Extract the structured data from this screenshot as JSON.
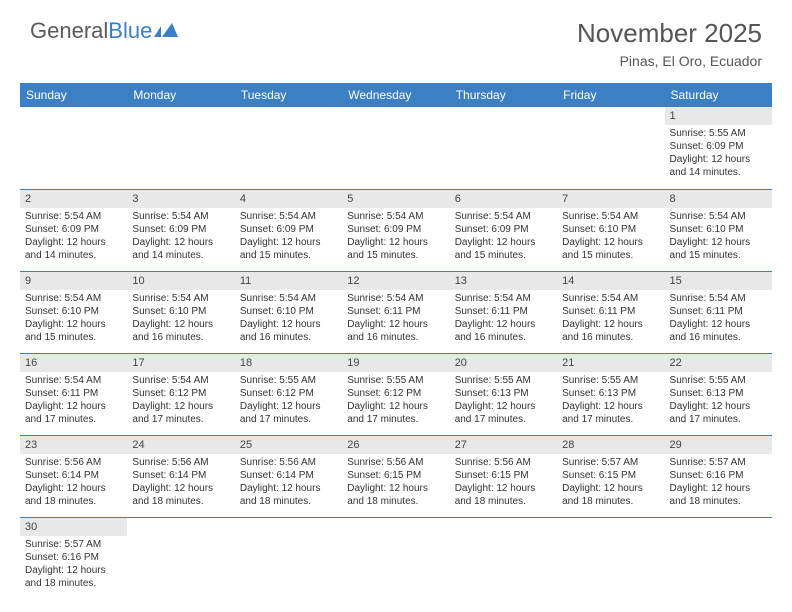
{
  "logo": {
    "text1": "General",
    "text2": "Blue"
  },
  "title": "November 2025",
  "location": "Pinas, El Oro, Ecuador",
  "colors": {
    "header_bg": "#3b7fc4",
    "header_text": "#ffffff",
    "daynum_bg": "#e8e8e8",
    "divider": "#3b7fc4",
    "body_text": "#333333",
    "title_text": "#555555"
  },
  "weekday_labels": [
    "Sunday",
    "Monday",
    "Tuesday",
    "Wednesday",
    "Thursday",
    "Friday",
    "Saturday"
  ],
  "first_weekday_index": 6,
  "days": [
    {
      "n": 1,
      "sunrise": "5:55 AM",
      "sunset": "6:09 PM",
      "daylight": "12 hours and 14 minutes."
    },
    {
      "n": 2,
      "sunrise": "5:54 AM",
      "sunset": "6:09 PM",
      "daylight": "12 hours and 14 minutes."
    },
    {
      "n": 3,
      "sunrise": "5:54 AM",
      "sunset": "6:09 PM",
      "daylight": "12 hours and 14 minutes."
    },
    {
      "n": 4,
      "sunrise": "5:54 AM",
      "sunset": "6:09 PM",
      "daylight": "12 hours and 15 minutes."
    },
    {
      "n": 5,
      "sunrise": "5:54 AM",
      "sunset": "6:09 PM",
      "daylight": "12 hours and 15 minutes."
    },
    {
      "n": 6,
      "sunrise": "5:54 AM",
      "sunset": "6:09 PM",
      "daylight": "12 hours and 15 minutes."
    },
    {
      "n": 7,
      "sunrise": "5:54 AM",
      "sunset": "6:10 PM",
      "daylight": "12 hours and 15 minutes."
    },
    {
      "n": 8,
      "sunrise": "5:54 AM",
      "sunset": "6:10 PM",
      "daylight": "12 hours and 15 minutes."
    },
    {
      "n": 9,
      "sunrise": "5:54 AM",
      "sunset": "6:10 PM",
      "daylight": "12 hours and 15 minutes."
    },
    {
      "n": 10,
      "sunrise": "5:54 AM",
      "sunset": "6:10 PM",
      "daylight": "12 hours and 16 minutes."
    },
    {
      "n": 11,
      "sunrise": "5:54 AM",
      "sunset": "6:10 PM",
      "daylight": "12 hours and 16 minutes."
    },
    {
      "n": 12,
      "sunrise": "5:54 AM",
      "sunset": "6:11 PM",
      "daylight": "12 hours and 16 minutes."
    },
    {
      "n": 13,
      "sunrise": "5:54 AM",
      "sunset": "6:11 PM",
      "daylight": "12 hours and 16 minutes."
    },
    {
      "n": 14,
      "sunrise": "5:54 AM",
      "sunset": "6:11 PM",
      "daylight": "12 hours and 16 minutes."
    },
    {
      "n": 15,
      "sunrise": "5:54 AM",
      "sunset": "6:11 PM",
      "daylight": "12 hours and 16 minutes."
    },
    {
      "n": 16,
      "sunrise": "5:54 AM",
      "sunset": "6:11 PM",
      "daylight": "12 hours and 17 minutes."
    },
    {
      "n": 17,
      "sunrise": "5:54 AM",
      "sunset": "6:12 PM",
      "daylight": "12 hours and 17 minutes."
    },
    {
      "n": 18,
      "sunrise": "5:55 AM",
      "sunset": "6:12 PM",
      "daylight": "12 hours and 17 minutes."
    },
    {
      "n": 19,
      "sunrise": "5:55 AM",
      "sunset": "6:12 PM",
      "daylight": "12 hours and 17 minutes."
    },
    {
      "n": 20,
      "sunrise": "5:55 AM",
      "sunset": "6:13 PM",
      "daylight": "12 hours and 17 minutes."
    },
    {
      "n": 21,
      "sunrise": "5:55 AM",
      "sunset": "6:13 PM",
      "daylight": "12 hours and 17 minutes."
    },
    {
      "n": 22,
      "sunrise": "5:55 AM",
      "sunset": "6:13 PM",
      "daylight": "12 hours and 17 minutes."
    },
    {
      "n": 23,
      "sunrise": "5:56 AM",
      "sunset": "6:14 PM",
      "daylight": "12 hours and 18 minutes."
    },
    {
      "n": 24,
      "sunrise": "5:56 AM",
      "sunset": "6:14 PM",
      "daylight": "12 hours and 18 minutes."
    },
    {
      "n": 25,
      "sunrise": "5:56 AM",
      "sunset": "6:14 PM",
      "daylight": "12 hours and 18 minutes."
    },
    {
      "n": 26,
      "sunrise": "5:56 AM",
      "sunset": "6:15 PM",
      "daylight": "12 hours and 18 minutes."
    },
    {
      "n": 27,
      "sunrise": "5:56 AM",
      "sunset": "6:15 PM",
      "daylight": "12 hours and 18 minutes."
    },
    {
      "n": 28,
      "sunrise": "5:57 AM",
      "sunset": "6:15 PM",
      "daylight": "12 hours and 18 minutes."
    },
    {
      "n": 29,
      "sunrise": "5:57 AM",
      "sunset": "6:16 PM",
      "daylight": "12 hours and 18 minutes."
    },
    {
      "n": 30,
      "sunrise": "5:57 AM",
      "sunset": "6:16 PM",
      "daylight": "12 hours and 18 minutes."
    }
  ],
  "labels": {
    "sunrise": "Sunrise:",
    "sunset": "Sunset:",
    "daylight": "Daylight:"
  }
}
